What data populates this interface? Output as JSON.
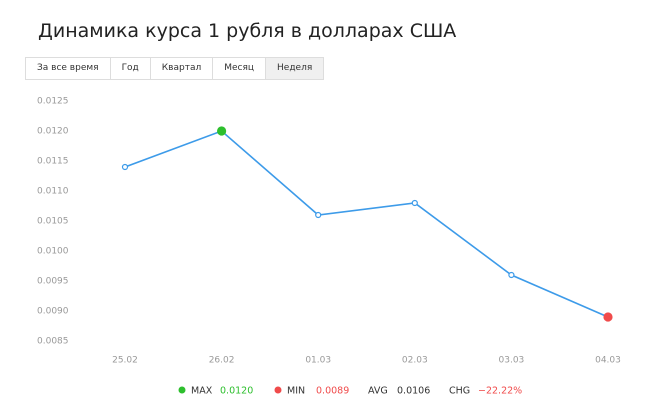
{
  "title": "Динамика курса 1 рубля в долларах США",
  "tabs": [
    "За все время",
    "Год",
    "Квартал",
    "Месяц",
    "Неделя"
  ],
  "active_tab": 4,
  "chart_data": {
    "type": "line",
    "categories": [
      "25.02",
      "26.02",
      "01.03",
      "02.03",
      "03.03",
      "04.03"
    ],
    "series": [
      {
        "color": "#3d9be9",
        "values": [
          0.0114,
          0.012,
          0.0106,
          0.0108,
          0.0096,
          0.0089
        ]
      }
    ],
    "ylim": [
      0.0085,
      0.0125
    ],
    "yticks": [
      0.0085,
      {
        "value": 0.009,
        "label": "0.0090"
      },
      0.0095,
      {
        "value": 0.01,
        "label": "0.0100"
      },
      0.0105,
      {
        "value": 0.011,
        "label": "0.0110"
      },
      0.0115,
      {
        "value": 0.012,
        "label": "0.0120"
      },
      0.0125
    ],
    "max_color": "#2dbf2d",
    "min_color": "#f04b4b"
  },
  "stats": [
    {
      "label": "MAX",
      "value": "0.0120",
      "color": "#2dbf2d",
      "value_color": "#2dbf2d"
    },
    {
      "label": "MIN",
      "value": "0.0089",
      "color": "#f04b4b",
      "value_color": "#f04b4b"
    },
    {
      "label": "AVG",
      "value": "0.0106",
      "value_color": "#333333"
    },
    {
      "label": "CHG",
      "value": "−22.22%",
      "value_color": "#f04b4b"
    }
  ]
}
